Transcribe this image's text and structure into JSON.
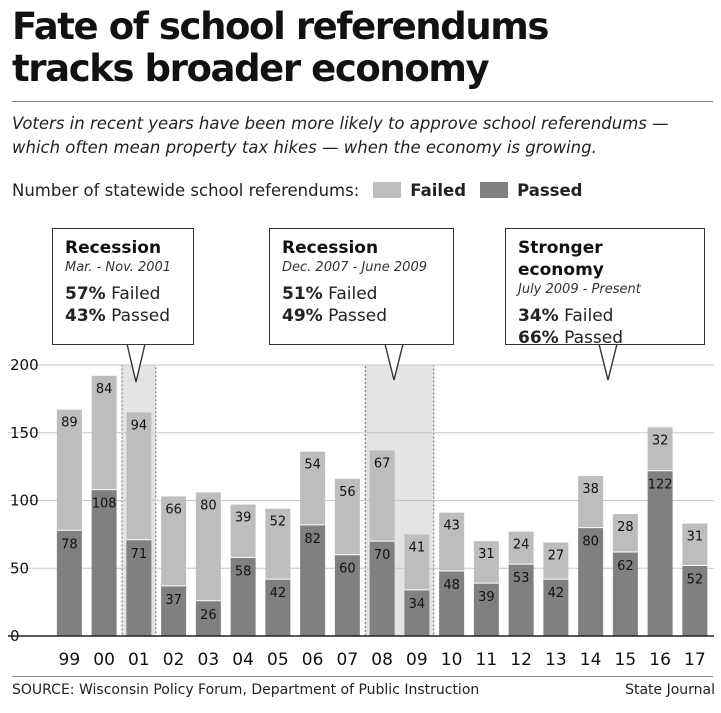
{
  "title_line1": "Fate of school referendums",
  "title_line2": "tracks broader economy",
  "subtitle": "Voters in recent years have been more likely to approve school referendums — which often mean property tax hikes — when the economy is growing.",
  "legend": {
    "label": "Number of statewide school referendums:",
    "failed": "Failed",
    "passed": "Passed"
  },
  "colors": {
    "failed": "#bdbdbf",
    "passed": "#808083",
    "recession_fill": "#e4e4e4",
    "grid": "#c7c7c7",
    "axis": "#222222"
  },
  "callouts": [
    {
      "title": "Recession",
      "dates": "Mar. - Nov. 2001",
      "failed_pct": "57%",
      "failed_label": "Failed",
      "passed_pct": "43%",
      "passed_label": "Passed"
    },
    {
      "title": "Recession",
      "dates": "Dec. 2007 - June 2009",
      "failed_pct": "51%",
      "failed_label": "Failed",
      "passed_pct": "49%",
      "passed_label": "Passed"
    },
    {
      "title": "Stronger economy",
      "dates": "July 2009 - Present",
      "failed_pct": "34%",
      "failed_label": "Failed",
      "passed_pct": "66%",
      "passed_label": "Passed"
    }
  ],
  "chart_data": {
    "type": "bar",
    "stacked": true,
    "title": "Number of statewide school referendums",
    "categories": [
      "99",
      "00",
      "01",
      "02",
      "03",
      "04",
      "05",
      "06",
      "07",
      "08",
      "09",
      "10",
      "11",
      "12",
      "13",
      "14",
      "15",
      "16",
      "17"
    ],
    "series": [
      {
        "name": "Passed",
        "values": [
          78,
          108,
          71,
          37,
          26,
          58,
          42,
          82,
          60,
          70,
          34,
          48,
          39,
          53,
          42,
          80,
          62,
          122,
          52
        ]
      },
      {
        "name": "Failed",
        "values": [
          89,
          84,
          94,
          66,
          80,
          39,
          52,
          54,
          56,
          67,
          41,
          43,
          31,
          24,
          27,
          38,
          28,
          32,
          31
        ]
      }
    ],
    "ylim": [
      0,
      200
    ],
    "yticks": [
      0,
      50,
      100,
      150,
      200
    ],
    "grid": true,
    "xlabel": "",
    "ylabel": "",
    "recession_highlights": [
      [
        "01",
        "01"
      ],
      [
        "08",
        "09"
      ]
    ]
  },
  "source": "SOURCE:  Wisconsin Policy Forum, Department of Public Instruction",
  "credit": "State Journal"
}
